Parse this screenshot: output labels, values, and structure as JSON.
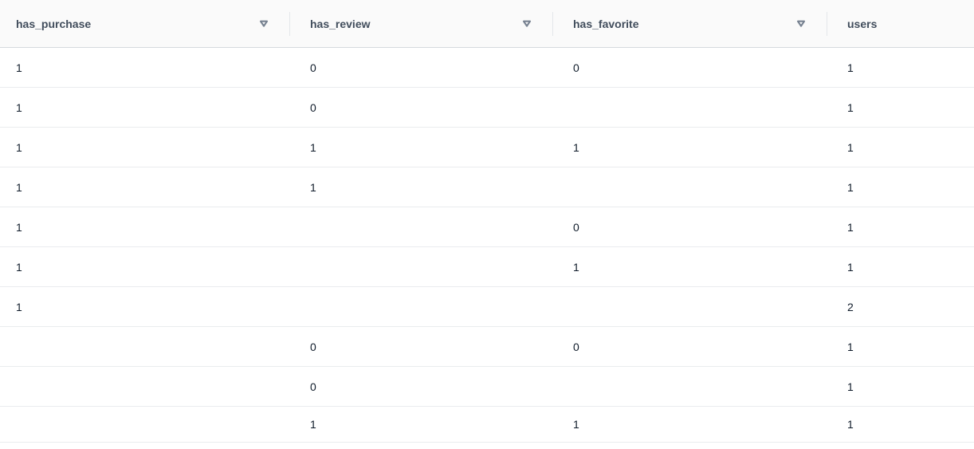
{
  "table": {
    "columns": [
      {
        "label": "has_purchase",
        "filterable": true
      },
      {
        "label": "has_review",
        "filterable": true
      },
      {
        "label": "has_favorite",
        "filterable": true
      },
      {
        "label": "users",
        "filterable": false
      }
    ],
    "rows": [
      [
        "1",
        "0",
        "0",
        "1"
      ],
      [
        "1",
        "0",
        "",
        "1"
      ],
      [
        "1",
        "1",
        "1",
        "1"
      ],
      [
        "1",
        "1",
        "",
        "1"
      ],
      [
        "1",
        "",
        "0",
        "1"
      ],
      [
        "1",
        "",
        "1",
        "1"
      ],
      [
        "1",
        "",
        "",
        "2"
      ],
      [
        "",
        "0",
        "0",
        "1"
      ],
      [
        "",
        "0",
        "",
        "1"
      ],
      [
        "",
        "1",
        "1",
        "1"
      ]
    ],
    "filter_icon": "triangle-down-outline"
  },
  "colors": {
    "header_background": "#fafafa",
    "header_text": "#414d5c",
    "header_border": "#d5d9de",
    "row_border": "#eaecee",
    "body_text": "#0f1b2a",
    "filter_icon": "#778291",
    "column_divider": "#e4e7ea"
  }
}
